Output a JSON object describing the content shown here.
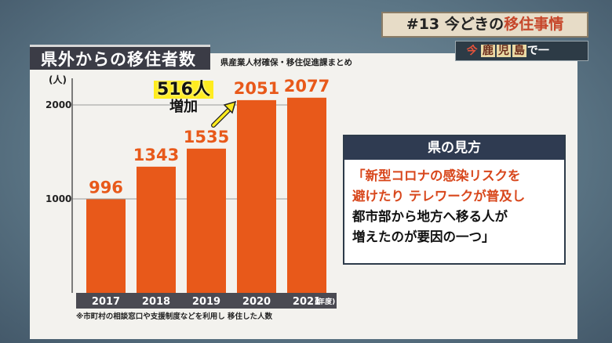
{
  "header": {
    "episode_prefix": "#13 今どきの",
    "episode_highlight": "移住事情",
    "series_ima": "今",
    "series_stamp_1": "鹿",
    "series_stamp_2": "児",
    "series_stamp_3": "島",
    "series_tail": "で一"
  },
  "chart_title": "県外からの移住者数",
  "source": "県産業人材確保・移住促進課まとめ",
  "callout": {
    "amount": "516人",
    "label": "増加"
  },
  "footnote": "※市町村の相談窓口や支援制度などを利用し 移住した人数",
  "colors": {
    "bar": "#e8591a",
    "axis_band": "#4a4a52"
  },
  "chart_data": {
    "type": "bar",
    "categories": [
      "2017",
      "2018",
      "2019",
      "2020",
      "2021"
    ],
    "values": [
      996,
      1343,
      1535,
      2051,
      2077
    ],
    "ylabel": "(人)",
    "x_unit": "(年度)",
    "y_ticks": [
      "1000",
      "2000"
    ],
    "ylim": [
      0,
      2200
    ]
  },
  "view_panel": {
    "heading": "県の見方",
    "lines_red": [
      "「新型コロナの感染リスクを",
      "避けたり テレワークが普及し"
    ],
    "lines_black": [
      "都市部から地方へ移る人が",
      "増えたのが要因の一つ」"
    ]
  }
}
